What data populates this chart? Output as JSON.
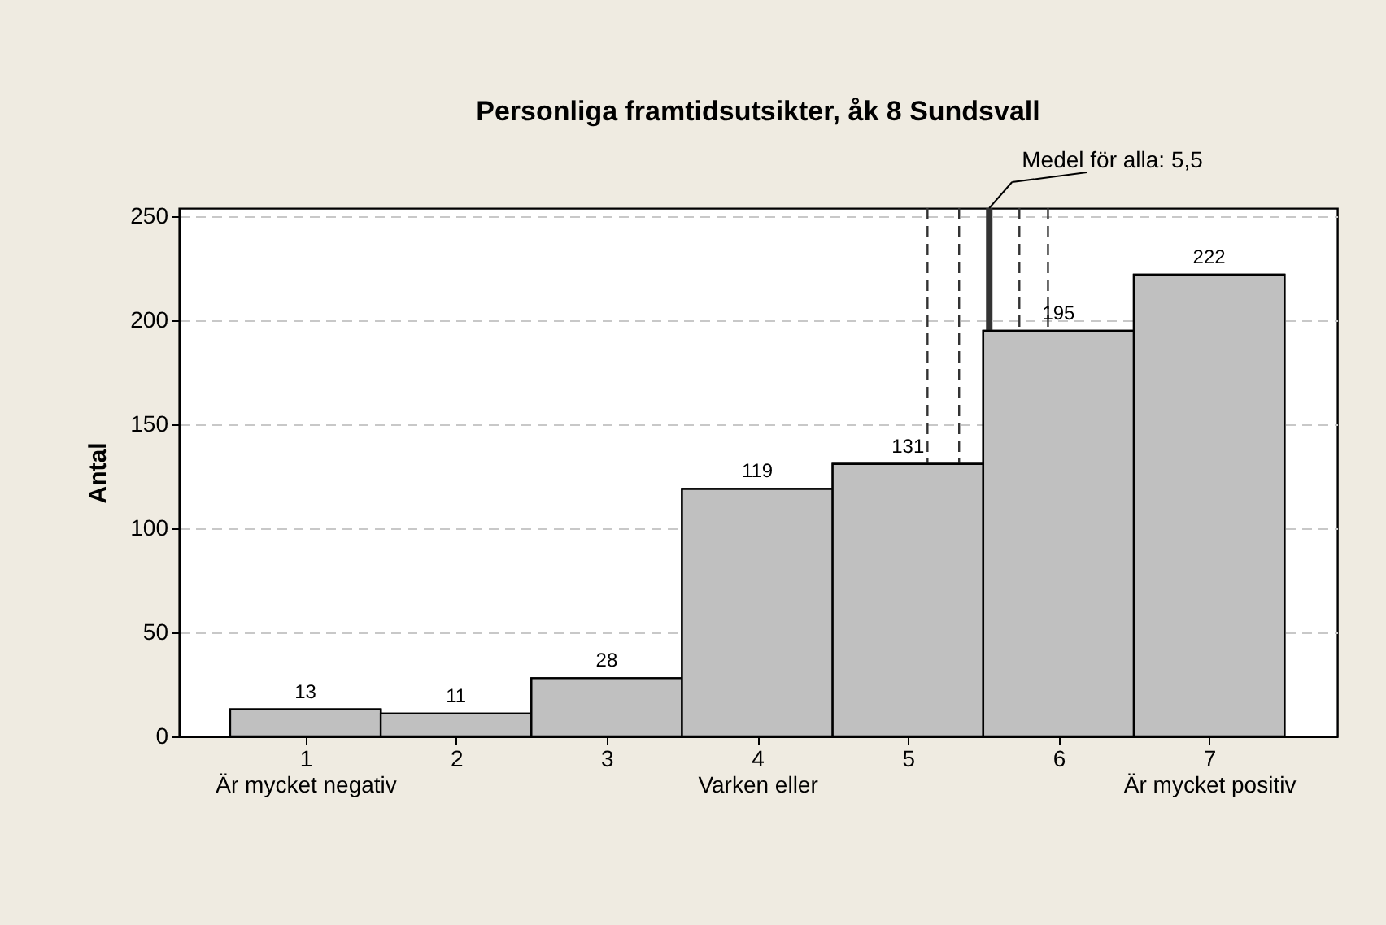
{
  "chart_data": {
    "type": "histogram",
    "title": "Personliga framtidsutsikter, åk 8 Sundsvall",
    "ylabel": "Antal",
    "bins": [
      0.5,
      1.5,
      2.5,
      3.5,
      4.5,
      5.5,
      6.5,
      7.5
    ],
    "values": [
      13,
      11,
      28,
      119,
      131,
      195,
      222
    ],
    "color": "#c0c0c0",
    "data_labels": true,
    "xlim": [
      0.16,
      7.85
    ],
    "xticks": [
      {
        "value": 1,
        "label": "1\nÄr mycket negativ"
      },
      2,
      3,
      {
        "value": 4,
        "label": "4\nVarken eller"
      },
      5,
      6,
      {
        "value": 7,
        "label": "7\nÄr mycket positiv"
      }
    ],
    "ylim": [
      0,
      254
    ],
    "yticks": [
      0,
      50,
      100,
      150,
      200,
      250
    ],
    "grid": "y",
    "ref_lines": [
      {
        "axis": "x",
        "value": 5.54,
        "label": "Medel för alla: 5,5",
        "color": "#333333",
        "line_style": "solid"
      },
      {
        "axis": "x",
        "value": 5.13,
        "label": null,
        "color": "#333333",
        "line_style": "dashed"
      },
      {
        "axis": "x",
        "value": 5.34,
        "label": null,
        "color": "#333333",
        "line_style": "dashed"
      },
      {
        "axis": "x",
        "value": 5.74,
        "label": null,
        "color": "#333333",
        "line_style": "dashed"
      },
      {
        "axis": "x",
        "value": 5.93,
        "label": null,
        "color": "#333333",
        "line_style": "dashed"
      }
    ]
  }
}
